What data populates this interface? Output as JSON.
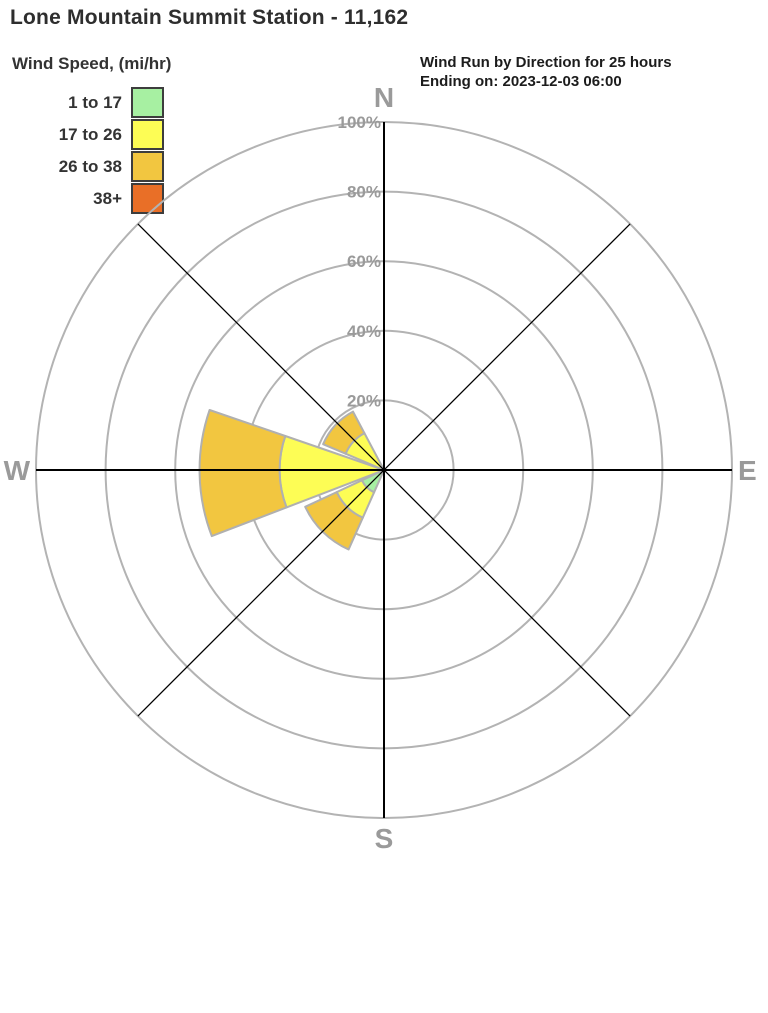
{
  "header": {
    "title": "Lone Mountain Summit Station - 11,162",
    "right_line1": "Wind Run by Direction for 25 hours",
    "right_line2": "Ending on: 2023-12-03 06:00"
  },
  "legend": {
    "title": "Wind Speed, (mi/hr)",
    "bins": [
      {
        "label": "1 to 17",
        "color": "#a7f0a2"
      },
      {
        "label": "17 to 26",
        "color": "#fdfd55"
      },
      {
        "label": "26 to 38",
        "color": "#f2c640"
      },
      {
        "label": "38+",
        "color": "#e96f27"
      }
    ]
  },
  "chart_data": {
    "type": "windrose",
    "title": "Wind Run by Direction for 25 hours",
    "period_hours": 25,
    "ending_on": "2023-12-03 06:00",
    "station": "Lone Mountain Summit Station - 11,162",
    "units": "percent of wind run",
    "speed_bins_mi_hr": [
      "1 to 17",
      "17 to 26",
      "26 to 38",
      "38+"
    ],
    "rings_pct": [
      20,
      40,
      60,
      80,
      100
    ],
    "ring_labels": [
      "20%",
      "40%",
      "60%",
      "80%",
      "100%"
    ],
    "compass_labels": {
      "n": "N",
      "e": "E",
      "s": "S",
      "w": "W"
    },
    "grid_color": "#b3b3b3",
    "axis_color": "#000000",
    "petal_border_color": "#b0b0b0",
    "petals": [
      {
        "direction": "NW",
        "span_compass_deg": [
          293,
          332
        ],
        "segments": [
          {
            "bin": "17 to 26",
            "pct": 12
          },
          {
            "bin": "26 to 38",
            "pct": 7
          }
        ],
        "total_pct": 19
      },
      {
        "direction": "W",
        "span_compass_deg": [
          249,
          289
        ],
        "segments": [
          {
            "bin": "17 to 26",
            "pct": 30
          },
          {
            "bin": "26 to 38",
            "pct": 23
          }
        ],
        "total_pct": 53
      },
      {
        "direction": "SW",
        "span_compass_deg": [
          204,
          245
        ],
        "segments": [
          {
            "bin": "1 to 17",
            "pct": 7
          },
          {
            "bin": "17 to 26",
            "pct": 8
          },
          {
            "bin": "26 to 38",
            "pct": 10
          }
        ],
        "total_pct": 25
      }
    ],
    "zero_directions": [
      "N",
      "NE",
      "E",
      "SE",
      "S"
    ]
  }
}
